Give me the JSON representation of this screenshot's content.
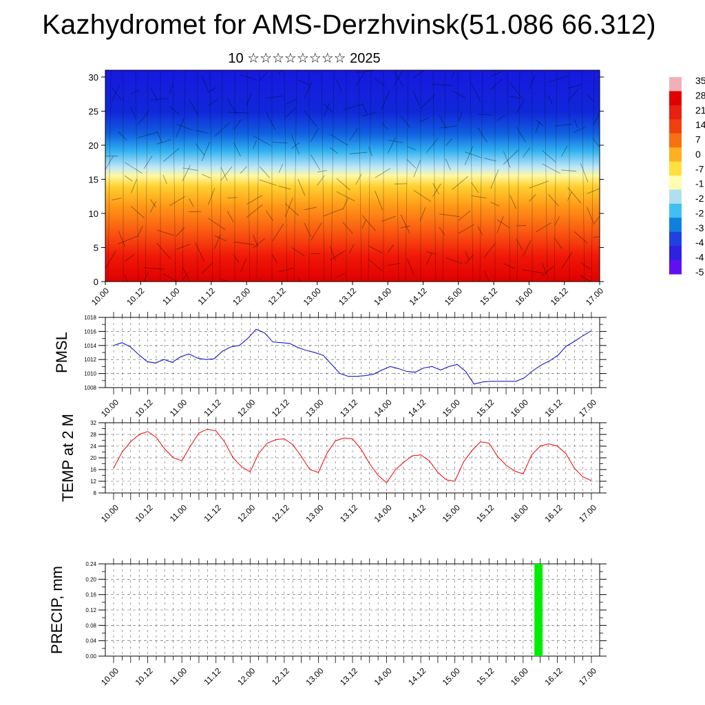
{
  "title": "Kazhydromet for AMS-Derzhvinsk(51.086 66.312)",
  "subtitle": "10 ☆☆☆☆☆☆☆☆ 2025",
  "chart_data": [
    {
      "type": "heatmap",
      "name": "cross-section",
      "x_ticks": [
        "10.00",
        "10.12",
        "11.00",
        "11.12",
        "12.00",
        "12.12",
        "13.00",
        "13.12",
        "14.00",
        "14.12",
        "15.00",
        "15.12",
        "16.00",
        "16.12",
        "17.00"
      ],
      "y_ticks": [
        0,
        5,
        10,
        15,
        20,
        25,
        30
      ],
      "ylim": [
        0,
        31
      ],
      "colorbar_labels": [
        "35",
        "28",
        "21",
        "14",
        "7",
        "0",
        "-7",
        "-1",
        "-2",
        "-2",
        "-3",
        "-4",
        "-4",
        "-5"
      ],
      "colorbar_colors": [
        "#f0b0b8",
        "#e00000",
        "#e82010",
        "#f04010",
        "#f87010",
        "#ffb020",
        "#ffe040",
        "#fffcb0",
        "#b0e0f0",
        "#40c0f0",
        "#1080e0",
        "#2040e0",
        "#3020e0",
        "#6010f0"
      ]
    },
    {
      "type": "line",
      "ylabel": "PMSL",
      "x_ticks": [
        "10.00",
        "10.12",
        "11.00",
        "11.12",
        "12.00",
        "12.12",
        "13.00",
        "13.12",
        "14.00",
        "14.12",
        "15.00",
        "15.12",
        "16.00",
        "16.12",
        "17.00"
      ],
      "y_ticks": [
        "1008",
        "1010",
        "1012",
        "1014",
        "1016",
        "1018"
      ],
      "ylim": [
        1008,
        1018
      ],
      "values": [
        1014.0,
        1014.4,
        1013.8,
        1012.7,
        1011.7,
        1011.5,
        1012.0,
        1011.6,
        1012.4,
        1012.8,
        1012.2,
        1012.0,
        1012.1,
        1013.2,
        1013.8,
        1014.0,
        1015.0,
        1016.3,
        1015.8,
        1014.5,
        1014.4,
        1014.3,
        1013.7,
        1013.3,
        1013.0,
        1012.6,
        1011.3,
        1010.0,
        1009.6,
        1009.6,
        1009.7,
        1009.9,
        1010.5,
        1011.0,
        1010.7,
        1010.3,
        1010.2,
        1010.8,
        1011.0,
        1010.5,
        1011.0,
        1011.3,
        1010.3,
        1008.5,
        1008.8,
        1008.9,
        1008.9,
        1008.9,
        1008.9,
        1009.4,
        1010.4,
        1011.2,
        1011.8,
        1012.6,
        1013.9,
        1014.6,
        1015.4,
        1016.1
      ],
      "color": "#0000cc"
    },
    {
      "type": "line",
      "ylabel": "TEMP at 2 M",
      "x_ticks": [
        "10.00",
        "10.12",
        "11.00",
        "11.12",
        "12.00",
        "12.12",
        "13.00",
        "13.12",
        "14.00",
        "14.12",
        "15.00",
        "15.12",
        "16.00",
        "16.12",
        "17.00"
      ],
      "y_ticks": [
        "8",
        "12",
        "16",
        "20",
        "24",
        "28",
        "32"
      ],
      "ylim": [
        8,
        32
      ],
      "values": [
        16.5,
        22.0,
        25.5,
        28.0,
        29.0,
        27.0,
        23.0,
        20.0,
        19.0,
        24.0,
        28.5,
        29.8,
        29.2,
        25.5,
        20.0,
        17.0,
        15.2,
        21.5,
        25.0,
        26.2,
        26.5,
        24.5,
        20.5,
        16.0,
        15.0,
        21.5,
        25.8,
        26.8,
        26.5,
        23.0,
        18.0,
        14.0,
        11.5,
        15.8,
        18.5,
        20.7,
        21.0,
        19.0,
        15.0,
        12.5,
        12.0,
        18.5,
        22.5,
        25.5,
        25.0,
        20.5,
        17.5,
        15.5,
        14.5,
        21.0,
        24.0,
        24.8,
        24.0,
        21.5,
        16.5,
        13.5,
        12.2
      ],
      "color": "#ee0000"
    },
    {
      "type": "bar",
      "ylabel": "PRECIP, mm",
      "x_ticks": [
        "10.00",
        "10.12",
        "11.00",
        "11.12",
        "12.00",
        "12.12",
        "13.00",
        "13.12",
        "14.00",
        "14.12",
        "15.00",
        "15.12",
        "16.00",
        "16.12",
        "17.00"
      ],
      "y_ticks": [
        "0.00",
        "0.04",
        "0.08",
        "0.12",
        "0.16",
        "0.20",
        "0.24"
      ],
      "ylim": [
        0,
        0.24
      ],
      "bars": [
        {
          "x_index": 12.45,
          "value": 0.24
        }
      ],
      "color": "#00ee00"
    }
  ]
}
